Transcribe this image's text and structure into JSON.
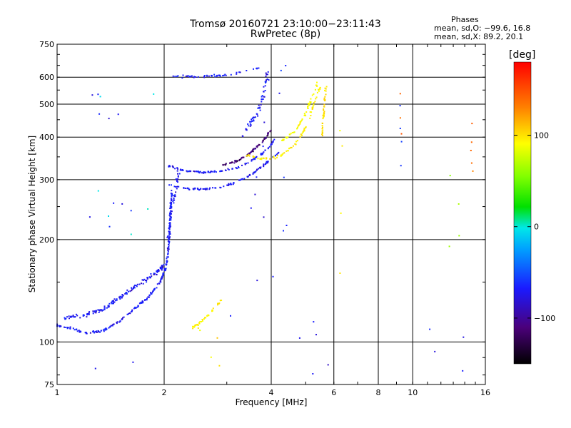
{
  "chart_data": {
    "type": "scatter",
    "title": "Tromsø 20160721 23:10:00−23:11:43",
    "subtitle": "RwPretec (8p)",
    "xlabel": "Frequency [MHz]",
    "ylabel": "Stationary phase Virtual Height [km]",
    "x_scale": "log",
    "y_scale": "log",
    "xlim": [
      1,
      16
    ],
    "ylim": [
      75,
      750
    ],
    "x_ticks": [
      1,
      2,
      4,
      6,
      8,
      10,
      16
    ],
    "x_tick_labels": [
      "1",
      "2",
      "4",
      "6",
      "8",
      "10",
      "16"
    ],
    "y_ticks": [
      75,
      100,
      200,
      300,
      400,
      500,
      600,
      750
    ],
    "y_tick_labels": [
      "75",
      "100",
      "200",
      "300",
      "400",
      "500",
      "600",
      "750"
    ],
    "grid": true,
    "color_axis": {
      "title": "[deg]",
      "range": [
        -150,
        180
      ],
      "ticks": [
        -100,
        0,
        100
      ],
      "tick_labels": [
        "−100",
        "0",
        "100"
      ]
    },
    "stats": {
      "title": "Phases",
      "line_o": "mean, sd,O: −99.6, 16.8",
      "line_x": "mean, sd,X:  89.2, 20.1"
    },
    "traces": [
      {
        "kind": "curve",
        "phase": -110,
        "spread": 0.012,
        "count": 260,
        "points": [
          [
            1.0,
            112
          ],
          [
            1.1,
            110
          ],
          [
            1.2,
            106
          ],
          [
            1.35,
            108
          ],
          [
            1.5,
            115
          ],
          [
            1.65,
            125
          ],
          [
            1.8,
            135
          ],
          [
            1.95,
            150
          ],
          [
            2.02,
            165
          ],
          [
            2.06,
            190
          ],
          [
            2.08,
            230
          ],
          [
            2.1,
            280
          ]
        ]
      },
      {
        "kind": "curve",
        "phase": -110,
        "spread": 0.02,
        "count": 150,
        "points": [
          [
            1.05,
            118
          ],
          [
            1.2,
            120
          ],
          [
            1.35,
            125
          ],
          [
            1.5,
            135
          ],
          [
            1.7,
            148
          ],
          [
            1.9,
            160
          ],
          [
            2.0,
            168
          ]
        ]
      },
      {
        "kind": "curve",
        "phase": -110,
        "spread": 0.008,
        "count": 110,
        "points": [
          [
            2.05,
            290
          ],
          [
            2.3,
            282
          ],
          [
            2.6,
            281
          ],
          [
            2.9,
            285
          ],
          [
            3.2,
            295
          ],
          [
            3.5,
            310
          ],
          [
            3.8,
            330
          ],
          [
            4.0,
            345
          ],
          [
            4.2,
            360
          ]
        ]
      },
      {
        "kind": "curve",
        "phase": -110,
        "spread": 0.008,
        "count": 110,
        "points": [
          [
            2.05,
            330
          ],
          [
            2.3,
            318
          ],
          [
            2.6,
            315
          ],
          [
            2.9,
            318
          ],
          [
            3.2,
            325
          ],
          [
            3.5,
            340
          ],
          [
            3.8,
            360
          ],
          [
            4.0,
            380
          ],
          [
            4.1,
            400
          ]
        ]
      },
      {
        "kind": "curve",
        "phase": -130,
        "spread": 0.01,
        "count": 80,
        "points": [
          [
            2.9,
            330
          ],
          [
            3.2,
            340
          ],
          [
            3.5,
            360
          ],
          [
            3.8,
            390
          ],
          [
            4.0,
            420
          ]
        ]
      },
      {
        "kind": "curve",
        "phase": -110,
        "spread": 0.012,
        "count": 50,
        "points": [
          [
            2.1,
            605
          ],
          [
            2.5,
            602
          ],
          [
            3.0,
            608
          ],
          [
            3.5,
            630
          ],
          [
            3.8,
            645
          ]
        ]
      },
      {
        "kind": "curve",
        "phase": -110,
        "spread": 0.03,
        "count": 55,
        "points": [
          [
            3.3,
            400
          ],
          [
            3.55,
            450
          ],
          [
            3.75,
            500
          ],
          [
            3.85,
            560
          ],
          [
            3.9,
            620
          ]
        ]
      },
      {
        "kind": "curve",
        "phase": 100,
        "spread": 0.012,
        "count": 80,
        "points": [
          [
            3.4,
            355
          ],
          [
            3.8,
            345
          ],
          [
            4.2,
            350
          ],
          [
            4.6,
            375
          ],
          [
            4.9,
            410
          ],
          [
            5.1,
            450
          ],
          [
            5.3,
            510
          ],
          [
            5.5,
            560
          ]
        ]
      },
      {
        "kind": "curve",
        "phase": 95,
        "spread": 0.012,
        "count": 55,
        "points": [
          [
            4.3,
            390
          ],
          [
            4.7,
            420
          ],
          [
            5.0,
            470
          ],
          [
            5.2,
            520
          ],
          [
            5.4,
            580
          ]
        ]
      },
      {
        "kind": "curve",
        "phase": 105,
        "spread": 0.015,
        "count": 40,
        "points": [
          [
            5.55,
            400
          ],
          [
            5.6,
            450
          ],
          [
            5.65,
            500
          ],
          [
            5.7,
            560
          ]
        ]
      },
      {
        "kind": "curve",
        "phase": 100,
        "spread": 0.015,
        "count": 40,
        "points": [
          [
            2.4,
            110
          ],
          [
            2.55,
            115
          ],
          [
            2.7,
            122
          ],
          [
            2.8,
            128
          ],
          [
            2.9,
            132
          ]
        ]
      },
      {
        "kind": "curve",
        "phase": -110,
        "spread": 0.02,
        "count": 40,
        "points": [
          [
            2.05,
            200
          ],
          [
            2.1,
            240
          ],
          [
            2.15,
            280
          ],
          [
            2.2,
            320
          ]
        ]
      },
      {
        "kind": "scatter",
        "phase": -110,
        "count": 18,
        "x": [
          3.5,
          4.6
        ],
        "y": [
          150,
          650
        ]
      },
      {
        "kind": "scatter",
        "phase": -110,
        "count": 10,
        "x": [
          1.2,
          1.65
        ],
        "y": [
          200,
          550
        ]
      },
      {
        "kind": "scatter",
        "phase": -20,
        "count": 6,
        "x": [
          1.3,
          1.9
        ],
        "y": [
          190,
          560
        ]
      },
      {
        "kind": "scatter",
        "phase": 140,
        "count": 5,
        "x": [
          14.5,
          14.8
        ],
        "y": [
          300,
          640
        ]
      },
      {
        "kind": "scatter",
        "phase": -100,
        "count": 4,
        "x": [
          9.2,
          9.3
        ],
        "y": [
          280,
          580
        ]
      },
      {
        "kind": "scatter",
        "phase": 150,
        "count": 3,
        "x": [
          9.2,
          9.3
        ],
        "y": [
          360,
          560
        ]
      },
      {
        "kind": "scatter",
        "phase": 95,
        "count": 4,
        "x": [
          6.2,
          6.4
        ],
        "y": [
          120,
          480
        ]
      },
      {
        "kind": "scatter",
        "phase": -110,
        "count": 6,
        "x": [
          3.0,
          6.0
        ],
        "y": [
          80,
          140
        ]
      },
      {
        "kind": "scatter",
        "phase": 100,
        "count": 5,
        "x": [
          2.3,
          3.0
        ],
        "y": [
          85,
          120
        ]
      },
      {
        "kind": "scatter",
        "phase": -110,
        "count": 4,
        "x": [
          11.0,
          14.0
        ],
        "y": [
          80,
          110
        ]
      },
      {
        "kind": "scatter",
        "phase": 60,
        "count": 4,
        "x": [
          11.0,
          14.0
        ],
        "y": [
          160,
          350
        ]
      },
      {
        "kind": "scatter",
        "phase": -110,
        "count": 4,
        "x": [
          1.2,
          1.8
        ],
        "y": [
          76,
          110
        ]
      }
    ]
  }
}
